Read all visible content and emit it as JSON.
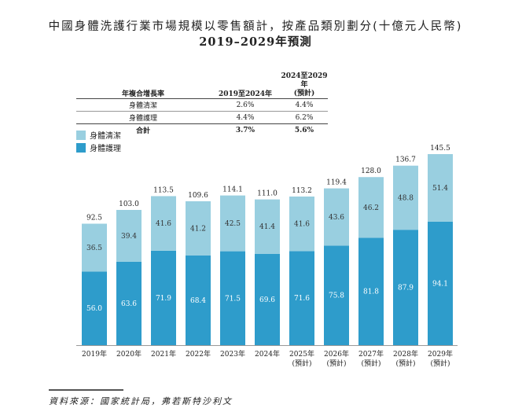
{
  "title_line1": "中國身體洗護行業市場規模以零售額計，按產品類別劃分(十億元人民幣)",
  "title_line2": "2019–2029年預測",
  "cagr_table": {
    "headers": [
      "年複合增長率",
      "2019至2024年",
      "2024至2029年",
      "(預計)"
    ],
    "rows": [
      [
        "身體清潔",
        "2.6%",
        "4.4%"
      ],
      [
        "身體護理",
        "4.4%",
        "6.2%"
      ],
      [
        "合計",
        "3.7%",
        "5.6%"
      ]
    ]
  },
  "chart_data": {
    "type": "bar",
    "stacked": true,
    "categories": [
      "2019年",
      "2020年",
      "2021年",
      "2022年",
      "2023年",
      "2024年",
      "2025年",
      "2026年",
      "2027年",
      "2028年",
      "2029年"
    ],
    "category_sublabels": [
      "",
      "",
      "",
      "",
      "",
      "",
      "(預計)",
      "(預計)",
      "(預計)",
      "(預計)",
      "(預計)"
    ],
    "series": [
      {
        "name": "身體護理",
        "color": "#2e9ccb",
        "values": [
          56.0,
          63.6,
          71.9,
          68.4,
          71.5,
          69.6,
          71.6,
          75.8,
          81.8,
          87.9,
          94.1
        ]
      },
      {
        "name": "身體清潔",
        "color": "#99cfe0",
        "values": [
          36.5,
          39.4,
          41.6,
          41.2,
          42.5,
          41.4,
          41.6,
          43.6,
          46.2,
          48.8,
          51.4
        ]
      }
    ],
    "totals": [
      92.5,
      103.0,
      113.5,
      109.6,
      114.1,
      111.0,
      113.2,
      119.4,
      128.0,
      136.7,
      145.5
    ],
    "ylim": [
      0,
      145.5
    ],
    "legend_placement": "top-left",
    "grid": false
  },
  "source": "資料來源：國家統計局，弗若斯特沙利文"
}
